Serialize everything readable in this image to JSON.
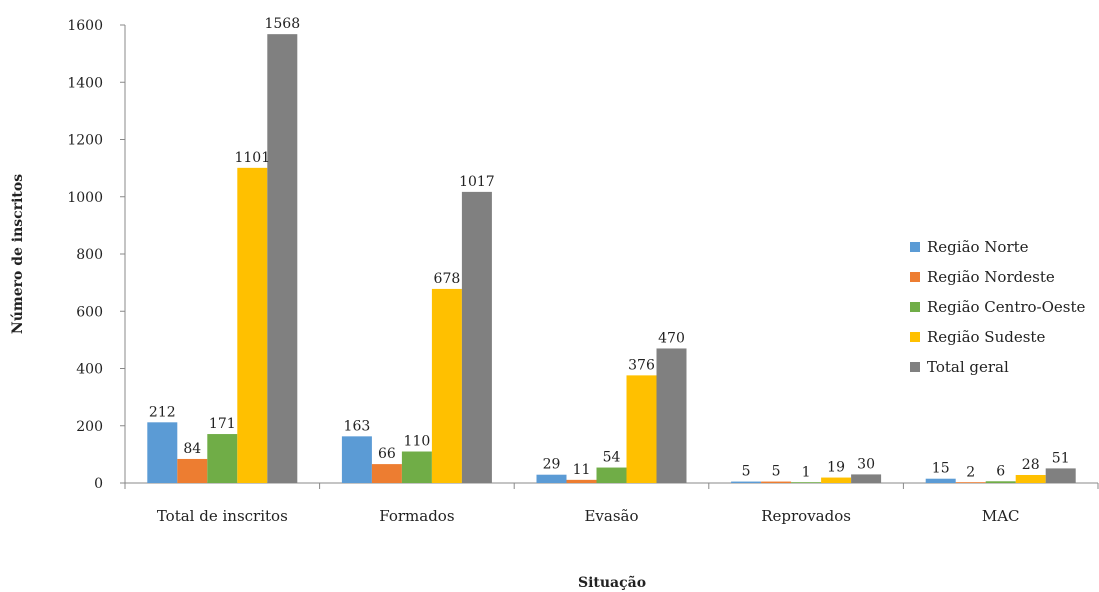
{
  "chart_data": {
    "type": "bar",
    "xlabel": "Situação",
    "ylabel": "Número de inscritos",
    "ylim": [
      0,
      1600
    ],
    "yticks": [
      0,
      200,
      400,
      600,
      800,
      1000,
      1200,
      1400,
      1600
    ],
    "categories": [
      "Total de inscritos",
      "Formados",
      "Evasão",
      "Reprovados",
      "MAC"
    ],
    "series": [
      {
        "name": "Região Norte",
        "color": "#5B9BD5",
        "values": [
          212,
          163,
          29,
          5,
          15
        ]
      },
      {
        "name": "Região Nordeste",
        "color": "#ED7D31",
        "values": [
          84,
          66,
          11,
          5,
          2
        ]
      },
      {
        "name": "Região Centro-Oeste",
        "color": "#70AD47",
        "values": [
          171,
          110,
          54,
          1,
          6
        ]
      },
      {
        "name": "Região Sudeste",
        "color": "#FFC000",
        "values": [
          1101,
          678,
          376,
          19,
          28
        ]
      },
      {
        "name": "Total geral",
        "color": "#808080",
        "values": [
          1568,
          1017,
          470,
          30,
          51
        ]
      }
    ],
    "grid": false,
    "legend_position": "right"
  }
}
